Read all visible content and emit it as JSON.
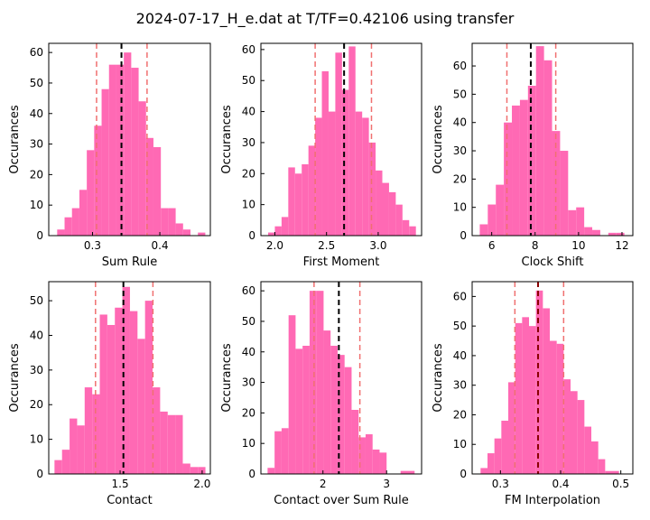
{
  "figure": {
    "title": "2024-07-17_H_e.dat at T/TF=0.42106 using transfer"
  },
  "colors": {
    "bar": "#ff69b4",
    "mean_line": "#000000",
    "interval_line": "#f07070",
    "fm_mean_line": "#8b0000"
  },
  "chart_data": [
    {
      "type": "bar",
      "title": "",
      "xlabel": "Sum Rule",
      "ylabel": "Occurances",
      "xlim": [
        0.235,
        0.475
      ],
      "ylim": [
        0,
        63
      ],
      "xticks": [
        0.3,
        0.4
      ],
      "xtick_labels": [
        "0.3",
        "0.4"
      ],
      "yticks": [
        0,
        10,
        20,
        30,
        40,
        50,
        60
      ],
      "bin_edges": [
        0.2475,
        0.2585,
        0.2695,
        0.2805,
        0.2915,
        0.3025,
        0.3135,
        0.3245,
        0.3355,
        0.3465,
        0.3575,
        0.3685,
        0.3795,
        0.3905,
        0.4015,
        0.4125,
        0.4235,
        0.4345,
        0.4455,
        0.4565,
        0.4675
      ],
      "counts": [
        2,
        6,
        9,
        15,
        28,
        36,
        48,
        56,
        56,
        60,
        55,
        44,
        32,
        29,
        9,
        9,
        4,
        2,
        0,
        1
      ],
      "mean": 0.343,
      "interval": [
        0.306,
        0.381
      ]
    },
    {
      "type": "bar",
      "title": "",
      "xlabel": "First Moment",
      "ylabel": "Occurances",
      "xlim": [
        1.865,
        3.42
      ],
      "ylim": [
        0,
        62
      ],
      "xticks": [
        2.0,
        2.5,
        3.0
      ],
      "xtick_labels": [
        "2.0",
        "2.5",
        "3.0"
      ],
      "yticks": [
        0,
        10,
        20,
        30,
        40,
        50,
        60
      ],
      "bin_edges": [
        1.935,
        2.0,
        2.065,
        2.13,
        2.195,
        2.26,
        2.325,
        2.39,
        2.455,
        2.52,
        2.585,
        2.65,
        2.715,
        2.78,
        2.845,
        2.91,
        2.975,
        3.04,
        3.105,
        3.17,
        3.235,
        3.3,
        3.365
      ],
      "counts": [
        1,
        3,
        6,
        22,
        20,
        23,
        29,
        38,
        53,
        40,
        59,
        47,
        61,
        40,
        38,
        30,
        21,
        17,
        14,
        10,
        5,
        3
      ],
      "mean": 2.67,
      "interval": [
        2.39,
        2.935
      ]
    },
    {
      "type": "bar",
      "title": "",
      "xlabel": "Clock Shift",
      "ylabel": "Occurances",
      "xlim": [
        5.1,
        12.5
      ],
      "ylim": [
        0,
        68
      ],
      "xticks": [
        6,
        8,
        10,
        12
      ],
      "xtick_labels": [
        "6",
        "8",
        "10",
        "12"
      ],
      "yticks": [
        0,
        10,
        20,
        30,
        40,
        50,
        60
      ],
      "bin_edges": [
        5.45,
        5.82,
        6.19,
        6.56,
        6.93,
        7.3,
        7.67,
        8.04,
        8.41,
        8.78,
        9.15,
        9.52,
        9.89,
        10.26,
        10.63,
        11.0,
        11.37,
        11.74,
        12.11
      ],
      "counts": [
        4,
        11,
        18,
        40,
        46,
        48,
        53,
        67,
        62,
        37,
        30,
        9,
        10,
        3,
        2,
        0,
        1,
        1
      ],
      "mean": 7.8,
      "interval": [
        6.7,
        8.95
      ]
    },
    {
      "type": "bar",
      "title": "",
      "xlabel": "Contact",
      "ylabel": "Occurances",
      "xlim": [
        1.065,
        2.05
      ],
      "ylim": [
        0,
        55.5
      ],
      "xticks": [
        1.5,
        2.0
      ],
      "xtick_labels": [
        "1.5",
        "2.0"
      ],
      "yticks": [
        0,
        10,
        20,
        30,
        40,
        50
      ],
      "bin_edges": [
        1.1,
        1.146,
        1.192,
        1.238,
        1.284,
        1.33,
        1.376,
        1.422,
        1.468,
        1.514,
        1.56,
        1.606,
        1.652,
        1.698,
        1.744,
        1.79,
        1.836,
        1.882,
        1.928,
        1.974,
        2.02
      ],
      "counts": [
        4,
        7,
        16,
        14,
        25,
        23,
        46,
        43,
        48,
        54,
        47,
        39,
        50,
        25,
        18,
        17,
        17,
        3,
        2,
        2
      ],
      "mean": 1.52,
      "interval": [
        1.35,
        1.7
      ]
    },
    {
      "type": "bar",
      "title": "",
      "xlabel": "Contact over Sum Rule",
      "ylabel": "Occurances",
      "xlim": [
        1.025,
        3.55
      ],
      "ylim": [
        0,
        63
      ],
      "xticks": [
        2,
        3
      ],
      "xtick_labels": [
        "2",
        "3"
      ],
      "yticks": [
        0,
        10,
        20,
        30,
        40,
        50,
        60
      ],
      "bin_edges": [
        1.13,
        1.24,
        1.35,
        1.46,
        1.57,
        1.68,
        1.79,
        1.9,
        2.01,
        2.12,
        2.23,
        2.34,
        2.45,
        2.56,
        2.67,
        2.78,
        2.89,
        3.0,
        3.11,
        3.22,
        3.33,
        3.44
      ],
      "counts": [
        2,
        14,
        15,
        52,
        41,
        42,
        60,
        60,
        47,
        42,
        39,
        35,
        21,
        12,
        13,
        8,
        7,
        0,
        0,
        1,
        1
      ],
      "mean": 2.25,
      "interval": [
        1.86,
        2.58
      ]
    },
    {
      "type": "bar",
      "title": "",
      "xlabel": "FM Interpolation",
      "ylabel": "Occurances",
      "xlim": [
        0.253,
        0.52
      ],
      "ylim": [
        0,
        65
      ],
      "xticks": [
        0.3,
        0.4,
        0.5
      ],
      "xtick_labels": [
        "0.3",
        "0.4",
        "0.5"
      ],
      "yticks": [
        0,
        10,
        20,
        30,
        40,
        50,
        60
      ],
      "bin_edges": [
        0.267,
        0.2785,
        0.29,
        0.3015,
        0.313,
        0.3245,
        0.336,
        0.3475,
        0.359,
        0.3705,
        0.382,
        0.3935,
        0.405,
        0.4165,
        0.428,
        0.4395,
        0.451,
        0.4625,
        0.474,
        0.4855,
        0.497
      ],
      "counts": [
        2,
        7,
        12,
        18,
        31,
        51,
        53,
        50,
        62,
        56,
        45,
        44,
        32,
        28,
        25,
        16,
        11,
        5,
        1,
        1
      ],
      "mean": 0.3625,
      "interval": [
        0.324,
        0.405
      ]
    }
  ]
}
